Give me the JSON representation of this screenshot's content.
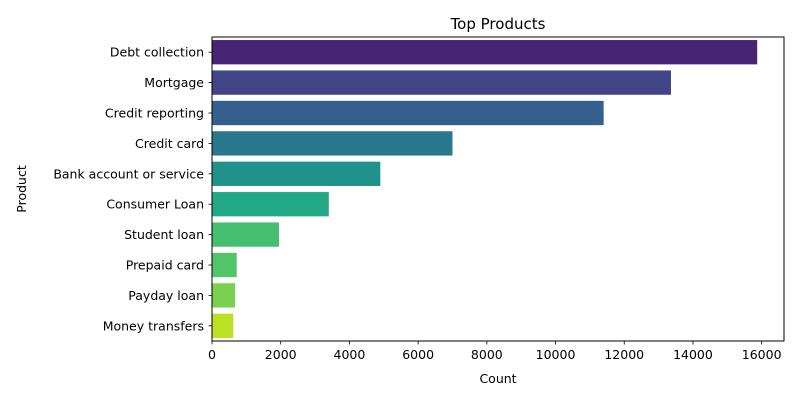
{
  "chart_data": {
    "type": "bar",
    "orientation": "horizontal",
    "title": "Top Products",
    "xlabel": "Count",
    "ylabel": "Product",
    "xlim": [
      0,
      16650
    ],
    "xticks": [
      0,
      2000,
      4000,
      6000,
      8000,
      10000,
      12000,
      14000,
      16000
    ],
    "xtick_labels": [
      "0",
      "2000",
      "4000",
      "6000",
      "8000",
      "10000",
      "12000",
      "14000",
      "16000"
    ],
    "grid": false,
    "legend": "none",
    "categories": [
      "Debt collection",
      "Mortgage",
      "Credit reporting",
      "Credit card",
      "Bank account or service",
      "Consumer Loan",
      "Student loan",
      "Prepaid card",
      "Payday loan",
      "Money transfers"
    ],
    "values": [
      15870,
      13360,
      11400,
      7000,
      4900,
      3400,
      1950,
      720,
      670,
      620
    ],
    "colors": [
      "#482475",
      "#414487",
      "#355f8d",
      "#2a788e",
      "#21918c",
      "#22a884",
      "#44bf70",
      "#52c569",
      "#7ad151",
      "#bddf26"
    ]
  }
}
